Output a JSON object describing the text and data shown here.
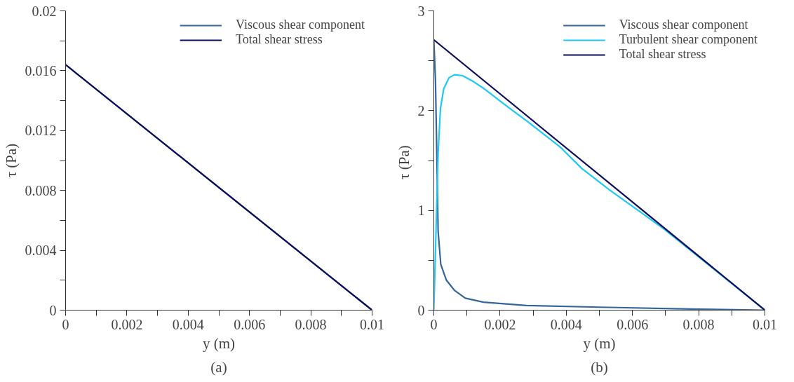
{
  "chart_data": [
    {
      "type": "line",
      "xlabel": "y (m)",
      "ylabel": "τ (Pa)",
      "xlim": [
        0,
        0.01
      ],
      "ylim": [
        0,
        0.02
      ],
      "xticks": [
        0,
        {
          "value": 0.001,
          "label": null
        },
        0.002,
        {
          "value": 0.003,
          "label": null
        },
        0.004,
        {
          "value": 0.005,
          "label": null
        },
        0.006,
        {
          "value": 0.007,
          "label": null
        },
        0.008,
        {
          "value": 0.009,
          "label": null
        },
        0.01
      ],
      "yticks": [
        0,
        {
          "value": 0.002,
          "label": null
        },
        0.004,
        {
          "value": 0.006,
          "label": null
        },
        0.008,
        {
          "value": 0.01,
          "label": null
        },
        0.012,
        {
          "value": 0.014,
          "label": null
        },
        0.016,
        {
          "value": 0.018,
          "label": null
        },
        0.02
      ],
      "grid": false,
      "legend": "top right",
      "line_style": "solid",
      "annotations": [
        "(a)"
      ],
      "series": [
        {
          "name": "Viscous shear component",
          "color": "#36659b",
          "x": [
            0,
            0.01
          ],
          "values": [
            0.0164,
            0
          ]
        },
        {
          "name": "Total shear stress",
          "color": "#0d0d5e",
          "x": [
            0,
            0.01
          ],
          "values": [
            0.0164,
            0
          ]
        }
      ]
    },
    {
      "type": "line",
      "xlabel": "y (m)",
      "ylabel": "τ  (Pa)",
      "xlim": [
        0,
        0.01
      ],
      "ylim": [
        0,
        3
      ],
      "xticks": [
        0,
        {
          "value": 0.001,
          "label": null
        },
        0.002,
        {
          "value": 0.003,
          "label": null
        },
        0.004,
        {
          "value": 0.005,
          "label": null
        },
        0.006,
        {
          "value": 0.007,
          "label": null
        },
        0.008,
        {
          "value": 0.009,
          "label": null
        },
        0.01
      ],
      "yticks": [
        0,
        {
          "value": 0.5,
          "label": null
        },
        1,
        {
          "value": 1.5,
          "label": null
        },
        2,
        {
          "value": 2.5,
          "label": null
        },
        3
      ],
      "grid": false,
      "legend": "top right",
      "line_style": "solid",
      "annotations": [
        "(b)"
      ],
      "series": [
        {
          "name": "Viscous shear component",
          "color": "#36659b",
          "x": [
            0,
            5e-05,
            9e-05,
            0.00013,
            0.00021,
            0.00038,
            0.00062,
            0.00095,
            0.0015,
            0.0028,
            0.005,
            0.008,
            0.01
          ],
          "values": [
            2.71,
            2.3,
            1.57,
            0.79,
            0.46,
            0.3,
            0.2,
            0.12,
            0.08,
            0.047,
            0.03,
            0.01,
            0
          ]
        },
        {
          "name": "Turbulent shear component",
          "color": "#1ec8f5",
          "x": [
            0,
            6.6e-05,
            0.00013,
            0.0002,
            0.0003,
            0.00046,
            0.00062,
            0.00087,
            0.0012,
            0.00152,
            0.00218,
            0.00283,
            0.0038,
            0.00447,
            0.00529,
            0.00693,
            0.01
          ],
          "values": [
            0,
            0.79,
            1.57,
            2.02,
            2.22,
            2.33,
            2.36,
            2.35,
            2.29,
            2.22,
            2.05,
            1.89,
            1.64,
            1.42,
            1.21,
            0.82,
            0
          ]
        },
        {
          "name": "Total shear stress",
          "color": "#0d0d5e",
          "x": [
            0,
            0.01
          ],
          "values": [
            2.71,
            0
          ]
        }
      ]
    }
  ]
}
